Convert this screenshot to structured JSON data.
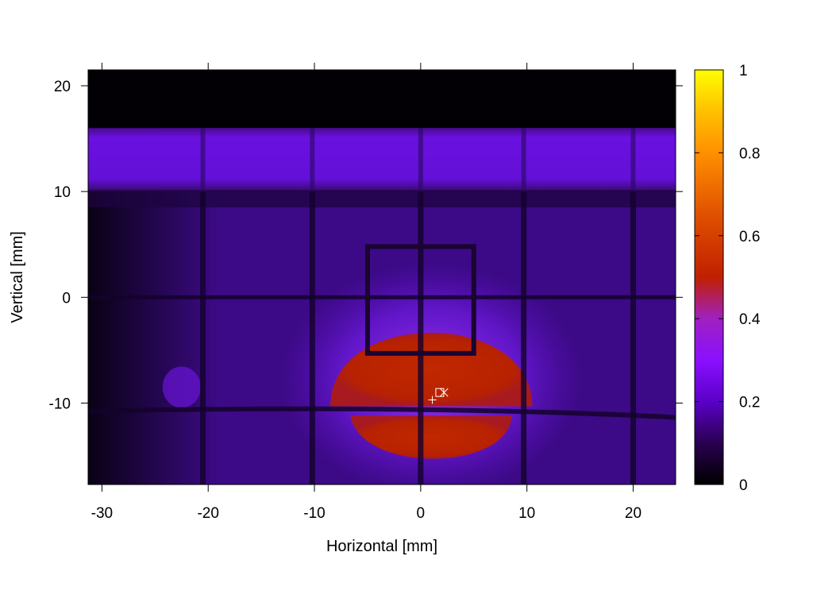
{
  "chart_data": {
    "type": "heatmap",
    "title": "",
    "xlabel": "Horizontal [mm]",
    "ylabel": "Vertical [mm]",
    "xlim": [
      -31.3,
      24
    ],
    "ylim": [
      -17.7,
      21.5
    ],
    "xticks": [
      "-30",
      "-20",
      "-10",
      "0",
      "10",
      "20"
    ],
    "xtick_values": [
      -30,
      -20,
      -10,
      0,
      10,
      20
    ],
    "yticks": [
      "20",
      "10",
      "0",
      "-10"
    ],
    "ytick_values": [
      20,
      10,
      0,
      -10
    ],
    "colorbar": {
      "range": [
        0,
        1
      ],
      "ticks": [
        "0",
        "0.2",
        "0.4",
        "0.6",
        "0.8",
        "1"
      ],
      "tick_values": [
        0,
        0.2,
        0.4,
        0.6,
        0.8,
        1
      ],
      "colormap": "gnuplot",
      "colors": [
        "#000000",
        "#5a00c8",
        "#8a10ff",
        "#c02000",
        "#ff9000",
        "#ffff00"
      ]
    },
    "features": {
      "top_dark_band_y": [
        16,
        21.5
      ],
      "top_bright_band_y": [
        10,
        16
      ],
      "grid_vertical_x": [
        -20.5,
        -10.2,
        0,
        9.7,
        20
      ],
      "grid_horizontal_y": [
        0,
        -10.6
      ],
      "square_frame": {
        "x": [
          -5,
          5
        ],
        "y": [
          -5.3,
          4.8
        ]
      },
      "hot_spot": {
        "center": [
          1,
          -8.5
        ],
        "radius_x": 9.5,
        "radius_y": 6.5,
        "value": 0.5
      }
    },
    "markers": [
      {
        "symbol": "+",
        "x": 1.1,
        "y": -9.7
      },
      {
        "symbol": "square",
        "x": 1.8,
        "y": -9.0
      },
      {
        "symbol": "x",
        "x": 2.2,
        "y": -9.0
      }
    ]
  }
}
